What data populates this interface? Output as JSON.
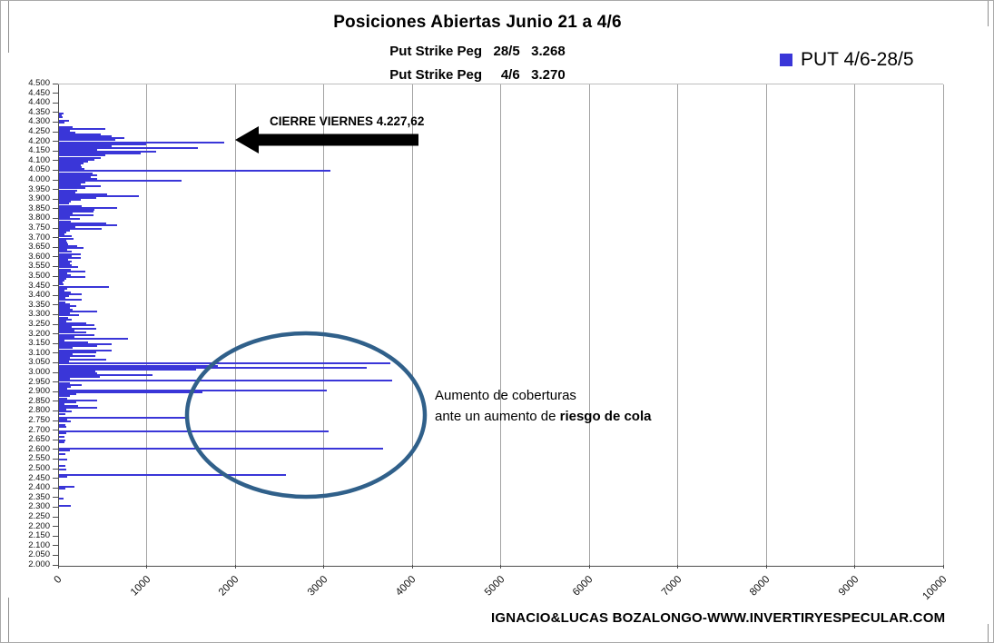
{
  "colors": {
    "bar": "#3a36d8",
    "legend_swatch": "#3a36d8",
    "gridline": "#a3a3a3",
    "axis": "#4d4d4d",
    "arrow": "#000000",
    "ellipse": "#30608a",
    "text": "#000000",
    "background": "#ffffff"
  },
  "footer_text": "IGNACIO&LUCAS BOZALONGO-WWW.INVERTIRYESPECULAR.COM",
  "chart_data": {
    "type": "bar",
    "orientation": "horizontal",
    "title": "Posiciones Abiertas Junio 21 a 4/6",
    "subtitle_lines": [
      "Put Strike Peg   28/5   3.268",
      "Put Strike Peg     4/6   3.270"
    ],
    "legend": {
      "label": "PUT 4/6-28/5",
      "position": "top-right"
    },
    "x_axis": {
      "min": 0,
      "max": 10000,
      "step": 1000,
      "grid": true
    },
    "y_axis": {
      "min": 2000,
      "max": 4500,
      "label_step": 50,
      "bar_step": 10,
      "format": "thousands-dot"
    },
    "series_name": "PUT 4/6-28/5",
    "points_note": "pairs of [strike, open_interest]",
    "points": [
      [
        4350,
        55
      ],
      [
        4340,
        30
      ],
      [
        4330,
        45
      ],
      [
        4310,
        115
      ],
      [
        4300,
        60
      ],
      [
        4280,
        150
      ],
      [
        4270,
        520
      ],
      [
        4260,
        120
      ],
      [
        4250,
        185
      ],
      [
        4240,
        470
      ],
      [
        4230,
        590
      ],
      [
        4220,
        740
      ],
      [
        4210,
        640
      ],
      [
        4200,
        1870
      ],
      [
        4190,
        980
      ],
      [
        4180,
        590
      ],
      [
        4170,
        1570
      ],
      [
        4160,
        430
      ],
      [
        4150,
        1100
      ],
      [
        4140,
        920
      ],
      [
        4130,
        520
      ],
      [
        4120,
        470
      ],
      [
        4110,
        400
      ],
      [
        4100,
        330
      ],
      [
        4090,
        280
      ],
      [
        4080,
        245
      ],
      [
        4070,
        260
      ],
      [
        4060,
        290
      ],
      [
        4050,
        3070
      ],
      [
        4040,
        380
      ],
      [
        4030,
        430
      ],
      [
        4020,
        360
      ],
      [
        4010,
        430
      ],
      [
        4000,
        1380
      ],
      [
        3990,
        300
      ],
      [
        3980,
        250
      ],
      [
        3970,
        470
      ],
      [
        3960,
        300
      ],
      [
        3950,
        200
      ],
      [
        3940,
        180
      ],
      [
        3930,
        540
      ],
      [
        3920,
        900
      ],
      [
        3910,
        420
      ],
      [
        3900,
        250
      ],
      [
        3890,
        130
      ],
      [
        3880,
        110
      ],
      [
        3870,
        260
      ],
      [
        3860,
        660
      ],
      [
        3850,
        400
      ],
      [
        3840,
        390
      ],
      [
        3830,
        150
      ],
      [
        3820,
        390
      ],
      [
        3810,
        120
      ],
      [
        3800,
        235
      ],
      [
        3790,
        130
      ],
      [
        3780,
        530
      ],
      [
        3770,
        660
      ],
      [
        3760,
        180
      ],
      [
        3750,
        485
      ],
      [
        3740,
        120
      ],
      [
        3730,
        85
      ],
      [
        3720,
        60
      ],
      [
        3710,
        145
      ],
      [
        3700,
        165
      ],
      [
        3690,
        80
      ],
      [
        3680,
        90
      ],
      [
        3670,
        100
      ],
      [
        3660,
        205
      ],
      [
        3650,
        280
      ],
      [
        3640,
        90
      ],
      [
        3630,
        145
      ],
      [
        3620,
        250
      ],
      [
        3610,
        140
      ],
      [
        3600,
        250
      ],
      [
        3590,
        100
      ],
      [
        3580,
        145
      ],
      [
        3570,
        120
      ],
      [
        3560,
        145
      ],
      [
        3550,
        215
      ],
      [
        3540,
        130
      ],
      [
        3530,
        300
      ],
      [
        3520,
        90
      ],
      [
        3510,
        130
      ],
      [
        3500,
        300
      ],
      [
        3490,
        80
      ],
      [
        3480,
        60
      ],
      [
        3470,
        40
      ],
      [
        3460,
        55
      ],
      [
        3450,
        560
      ],
      [
        3440,
        90
      ],
      [
        3430,
        65
      ],
      [
        3420,
        130
      ],
      [
        3410,
        260
      ],
      [
        3400,
        110
      ],
      [
        3390,
        75
      ],
      [
        3380,
        260
      ],
      [
        3370,
        75
      ],
      [
        3360,
        120
      ],
      [
        3350,
        190
      ],
      [
        3340,
        125
      ],
      [
        3330,
        155
      ],
      [
        3320,
        435
      ],
      [
        3310,
        120
      ],
      [
        3300,
        230
      ],
      [
        3290,
        100
      ],
      [
        3280,
        145
      ],
      [
        3270,
        85
      ],
      [
        3260,
        310
      ],
      [
        3250,
        400
      ],
      [
        3240,
        140
      ],
      [
        3230,
        420
      ],
      [
        3220,
        175
      ],
      [
        3210,
        310
      ],
      [
        3200,
        400
      ],
      [
        3190,
        175
      ],
      [
        3180,
        775
      ],
      [
        3170,
        60
      ],
      [
        3160,
        330
      ],
      [
        3150,
        590
      ],
      [
        3140,
        430
      ],
      [
        3130,
        155
      ],
      [
        3120,
        590
      ],
      [
        3110,
        425
      ],
      [
        3100,
        155
      ],
      [
        3090,
        415
      ],
      [
        3080,
        120
      ],
      [
        3070,
        535
      ],
      [
        3060,
        110
      ],
      [
        3050,
        3740
      ],
      [
        3040,
        1790
      ],
      [
        3030,
        3480
      ],
      [
        3020,
        1550
      ],
      [
        3010,
        410
      ],
      [
        3000,
        430
      ],
      [
        2990,
        1060
      ],
      [
        2980,
        460
      ],
      [
        2970,
        120
      ],
      [
        2960,
        3760
      ],
      [
        2950,
        125
      ],
      [
        2940,
        260
      ],
      [
        2930,
        130
      ],
      [
        2920,
        90
      ],
      [
        2910,
        3030
      ],
      [
        2900,
        1620
      ],
      [
        2890,
        190
      ],
      [
        2880,
        120
      ],
      [
        2870,
        90
      ],
      [
        2860,
        430
      ],
      [
        2850,
        195
      ],
      [
        2840,
        65
      ],
      [
        2830,
        215
      ],
      [
        2820,
        430
      ],
      [
        2810,
        80
      ],
      [
        2800,
        140
      ],
      [
        2790,
        70
      ],
      [
        2770,
        1460
      ],
      [
        2760,
        90
      ],
      [
        2750,
        130
      ],
      [
        2730,
        70
      ],
      [
        2720,
        80
      ],
      [
        2700,
        3050
      ],
      [
        2690,
        80
      ],
      [
        2670,
        60
      ],
      [
        2650,
        70
      ],
      [
        2640,
        60
      ],
      [
        2610,
        3660
      ],
      [
        2600,
        120
      ],
      [
        2580,
        70
      ],
      [
        2550,
        90
      ],
      [
        2520,
        70
      ],
      [
        2500,
        80
      ],
      [
        2470,
        2560
      ],
      [
        2460,
        90
      ],
      [
        2410,
        175
      ],
      [
        2400,
        70
      ],
      [
        2350,
        50
      ],
      [
        2310,
        135
      ]
    ],
    "annotations": {
      "arrow_label": "CIERRE VIERNES 4.227,62",
      "arrow_points_to_strike": 4227.62,
      "ellipse_region": {
        "strikes": "2.450-3.050",
        "meaning": "cluster of large put positions"
      },
      "note_line1": "Aumento de coberturas",
      "note_line2_regular": "ante un aumento de ",
      "note_line2_bold": "riesgo de cola"
    }
  }
}
